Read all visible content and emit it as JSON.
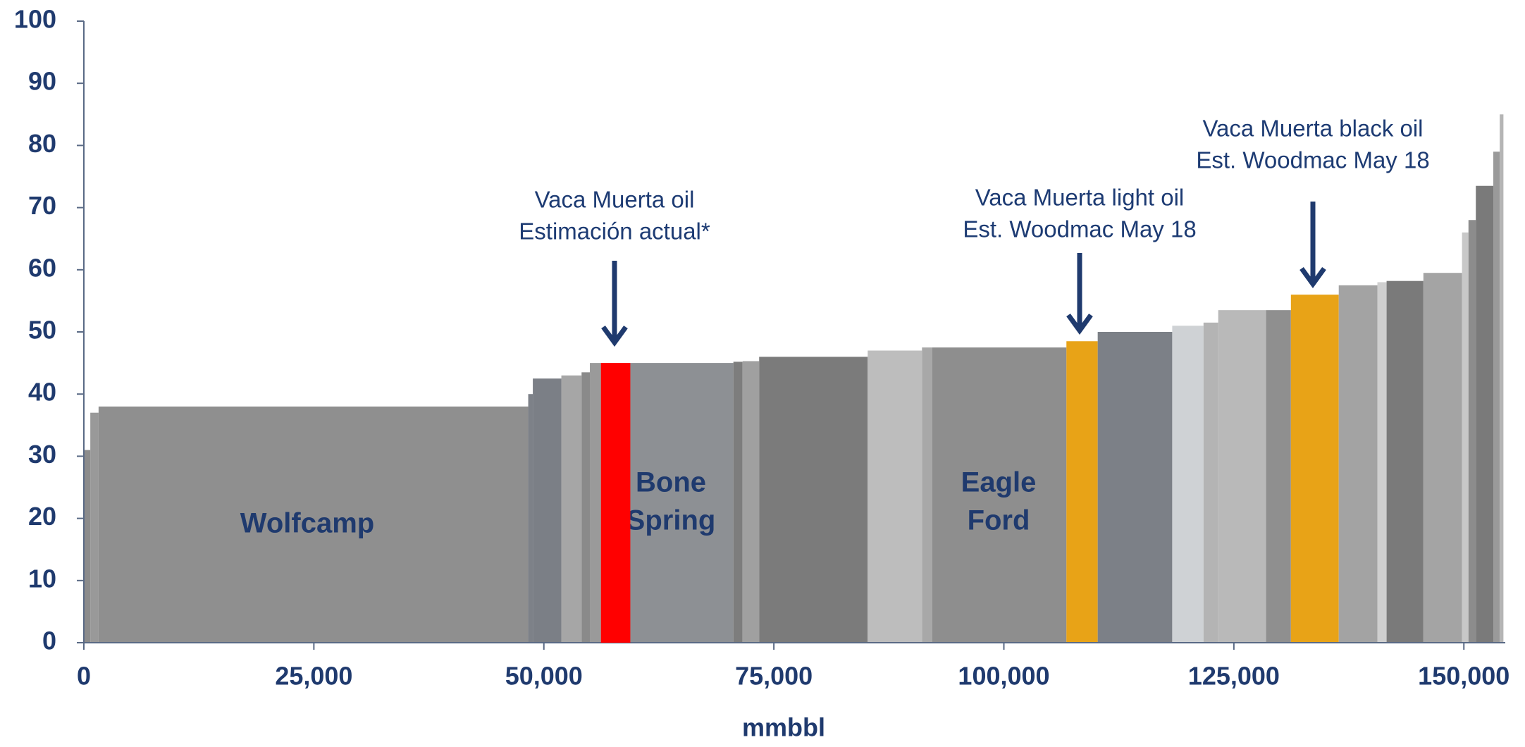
{
  "chart_data": {
    "type": "cost_curve",
    "x_label": "mmbbl",
    "xlim": [
      0,
      154500
    ],
    "ylim": [
      0,
      100
    ],
    "xticks": [
      0,
      {
        "value": 25000,
        "label": "25,000"
      },
      {
        "value": 50000,
        "label": "50,000"
      },
      {
        "value": 75000,
        "label": "75,000"
      },
      {
        "value": 100000,
        "label": "100,000"
      },
      {
        "value": 125000,
        "label": "125,000"
      },
      {
        "value": 150000,
        "label": "150,000"
      }
    ],
    "yticks": [
      0,
      10,
      20,
      30,
      40,
      50,
      60,
      70,
      80,
      90,
      100
    ],
    "bars": [
      {
        "x": [
          0,
          700
        ],
        "value": 31,
        "color": "#8c8c8c"
      },
      {
        "x": [
          700,
          1600
        ],
        "value": 37,
        "color": "#999999"
      },
      {
        "x": [
          1600,
          48300
        ],
        "value": 38,
        "color": "#8f8f8f"
      },
      {
        "x": [
          48300,
          48800
        ],
        "value": 40,
        "color": "#7d8188"
      },
      {
        "x": [
          48800,
          51900
        ],
        "value": 42.5,
        "color": "#7b7f86"
      },
      {
        "x": [
          51900,
          54100
        ],
        "value": 43,
        "color": "#a6a6a6"
      },
      {
        "x": [
          54100,
          55000
        ],
        "value": 43.5,
        "color": "#8a8a8a"
      },
      {
        "x": [
          55000,
          56200
        ],
        "value": 45,
        "color": "#9a9a9a"
      },
      {
        "x": [
          56200,
          59400
        ],
        "value": 45,
        "color": "#ff0000"
      },
      {
        "x": [
          59400,
          70600
        ],
        "value": 45,
        "color": "#8d9094"
      },
      {
        "x": [
          70600,
          71600
        ],
        "value": 45.2,
        "color": "#7d7d7d"
      },
      {
        "x": [
          71600,
          73400
        ],
        "value": 45.3,
        "color": "#a0a0a0"
      },
      {
        "x": [
          73400,
          85200
        ],
        "value": 46,
        "color": "#7b7b7b"
      },
      {
        "x": [
          85200,
          91100
        ],
        "value": 47,
        "color": "#bdbdbd"
      },
      {
        "x": [
          91100,
          92200
        ],
        "value": 47.5,
        "color": "#a8a8a8"
      },
      {
        "x": [
          92200,
          106800
        ],
        "value": 47.5,
        "color": "#8e8e8e"
      },
      {
        "x": [
          106800,
          110200
        ],
        "value": 48.5,
        "color": "#e8a317"
      },
      {
        "x": [
          110200,
          118300
        ],
        "value": 50,
        "color": "#7c8087"
      },
      {
        "x": [
          118300,
          121700
        ],
        "value": 51,
        "color": "#cfd2d5"
      },
      {
        "x": [
          121700,
          123300
        ],
        "value": 51.5,
        "color": "#b4b4b4"
      },
      {
        "x": [
          123300,
          128500
        ],
        "value": 53.5,
        "color": "#b9b9b9"
      },
      {
        "x": [
          128500,
          131200
        ],
        "value": 53.5,
        "color": "#8f8f8f"
      },
      {
        "x": [
          131200,
          136400
        ],
        "value": 56,
        "color": "#e8a317"
      },
      {
        "x": [
          136400,
          140600
        ],
        "value": 57.5,
        "color": "#a3a3a3"
      },
      {
        "x": [
          140600,
          141600
        ],
        "value": 58,
        "color": "#cfcfcf"
      },
      {
        "x": [
          141600,
          145600
        ],
        "value": 58.2,
        "color": "#7a7a7a"
      },
      {
        "x": [
          145600,
          149800
        ],
        "value": 59.5,
        "color": "#a4a4a4"
      },
      {
        "x": [
          149800,
          150500
        ],
        "value": 66,
        "color": "#c8c8c8"
      },
      {
        "x": [
          150500,
          151300
        ],
        "value": 68,
        "color": "#8c8c8c"
      },
      {
        "x": [
          151300,
          153200
        ],
        "value": 73.5,
        "color": "#7a7a7a"
      },
      {
        "x": [
          153200,
          153900
        ],
        "value": 79,
        "color": "#9a9a9a"
      },
      {
        "x": [
          153900,
          154300
        ],
        "value": 85,
        "color": "#b5b5b5"
      }
    ],
    "region_labels": [
      {
        "lines": [
          "Wolfcamp"
        ]
      },
      {
        "lines": [
          "Bone",
          "Spring"
        ]
      },
      {
        "lines": [
          "Eagle",
          "Ford"
        ]
      }
    ],
    "annotations": [
      {
        "lines": [
          "Vaca Muerta oil",
          "Estimación actual*"
        ]
      },
      {
        "lines": [
          "Vaca Muerta light oil",
          "Est. Woodmac May 18"
        ]
      },
      {
        "lines": [
          "Vaca Muerta black oil",
          "Est. Woodmac May 18"
        ]
      }
    ]
  }
}
